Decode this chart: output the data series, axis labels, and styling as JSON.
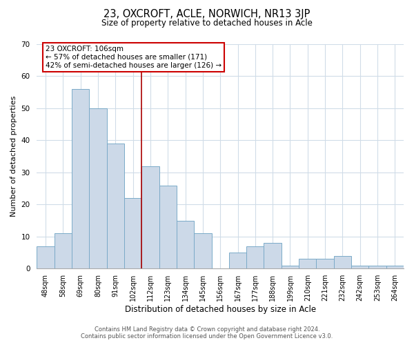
{
  "title": "23, OXCROFT, ACLE, NORWICH, NR13 3JP",
  "subtitle": "Size of property relative to detached houses in Acle",
  "xlabel": "Distribution of detached houses by size in Acle",
  "ylabel": "Number of detached properties",
  "categories": [
    "48sqm",
    "58sqm",
    "69sqm",
    "80sqm",
    "91sqm",
    "102sqm",
    "112sqm",
    "123sqm",
    "134sqm",
    "145sqm",
    "156sqm",
    "167sqm",
    "177sqm",
    "188sqm",
    "199sqm",
    "210sqm",
    "221sqm",
    "232sqm",
    "242sqm",
    "253sqm",
    "264sqm"
  ],
  "values": [
    7,
    11,
    56,
    50,
    39,
    22,
    32,
    26,
    15,
    11,
    0,
    5,
    7,
    8,
    1,
    3,
    3,
    4,
    1,
    1,
    1
  ],
  "bar_color": "#ccd9e8",
  "bar_edge_color": "#7aaac8",
  "vline_x_index": 5.5,
  "vline_color": "#aa0000",
  "annotation_title": "23 OXCROFT: 106sqm",
  "annotation_line1": "← 57% of detached houses are smaller (171)",
  "annotation_line2": "42% of semi-detached houses are larger (126) →",
  "annotation_box_color": "#ffffff",
  "annotation_box_edge_color": "#cc0000",
  "ylim": [
    0,
    70
  ],
  "yticks": [
    0,
    10,
    20,
    30,
    40,
    50,
    60,
    70
  ],
  "grid_color": "#d0dce8",
  "footer_line1": "Contains HM Land Registry data © Crown copyright and database right 2024.",
  "footer_line2": "Contains public sector information licensed under the Open Government Licence v3.0.",
  "figsize": [
    6.0,
    5.0
  ],
  "dpi": 100
}
